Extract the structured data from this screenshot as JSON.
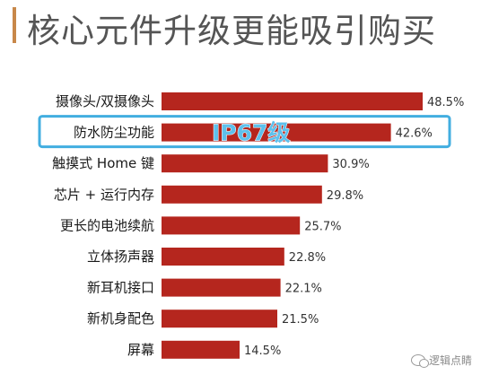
{
  "chart_data": {
    "type": "bar",
    "orientation": "horizontal",
    "title": "核心元件升级更能吸引购买",
    "categories": [
      "摄像头/双摄像头",
      "防水防尘功能",
      "触摸式 Home 键",
      "芯片 + 运行内存",
      "更长的电池续航",
      "立体扬声器",
      "新耳机接口",
      "新机身配色",
      "屏幕"
    ],
    "values": [
      48.5,
      42.6,
      30.9,
      29.8,
      25.7,
      22.8,
      22.1,
      21.5,
      14.5
    ],
    "value_labels": [
      "48.5%",
      "42.6%",
      "30.9%",
      "29.8%",
      "25.7%",
      "22.8%",
      "22.1%",
      "21.5%",
      "14.5%"
    ],
    "unit": "%",
    "xlim": [
      0,
      50
    ],
    "bar_color": "#b5261e",
    "grid": false,
    "annotation": {
      "text": "IP67级",
      "category": "防水防尘功能",
      "color": "#42aee0"
    }
  },
  "watermark": "逻辑点睛"
}
